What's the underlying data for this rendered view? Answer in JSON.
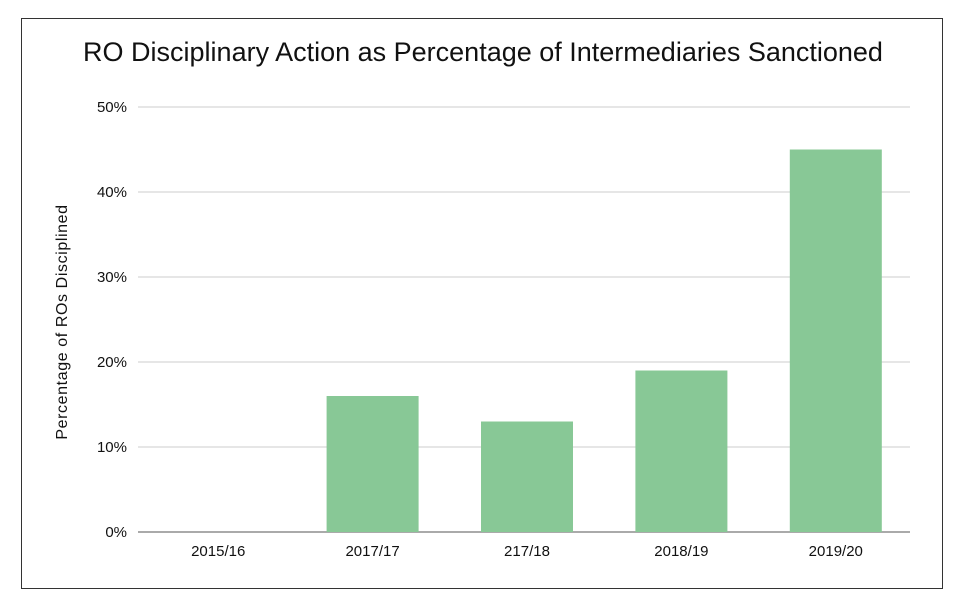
{
  "colors": {
    "bar": "#88c896",
    "grid": "#cccccc",
    "axis": "#555555"
  },
  "chart_data": {
    "type": "bar",
    "title": "RO Disciplinary Action as Percentage of Intermediaries Sanctioned",
    "xlabel": "",
    "ylabel": "Percentage of ROs Disciplined",
    "categories": [
      "2015/16",
      "2017/17",
      "217/18",
      "2018/19",
      "2019/20"
    ],
    "values": [
      0,
      16,
      13,
      19,
      45
    ],
    "ylim": [
      0,
      50
    ],
    "yticks": [
      0,
      10,
      20,
      30,
      40,
      50
    ],
    "ytick_labels": [
      "0%",
      "10%",
      "20%",
      "30%",
      "40%",
      "50%"
    ],
    "grid": true,
    "legend": "none"
  }
}
